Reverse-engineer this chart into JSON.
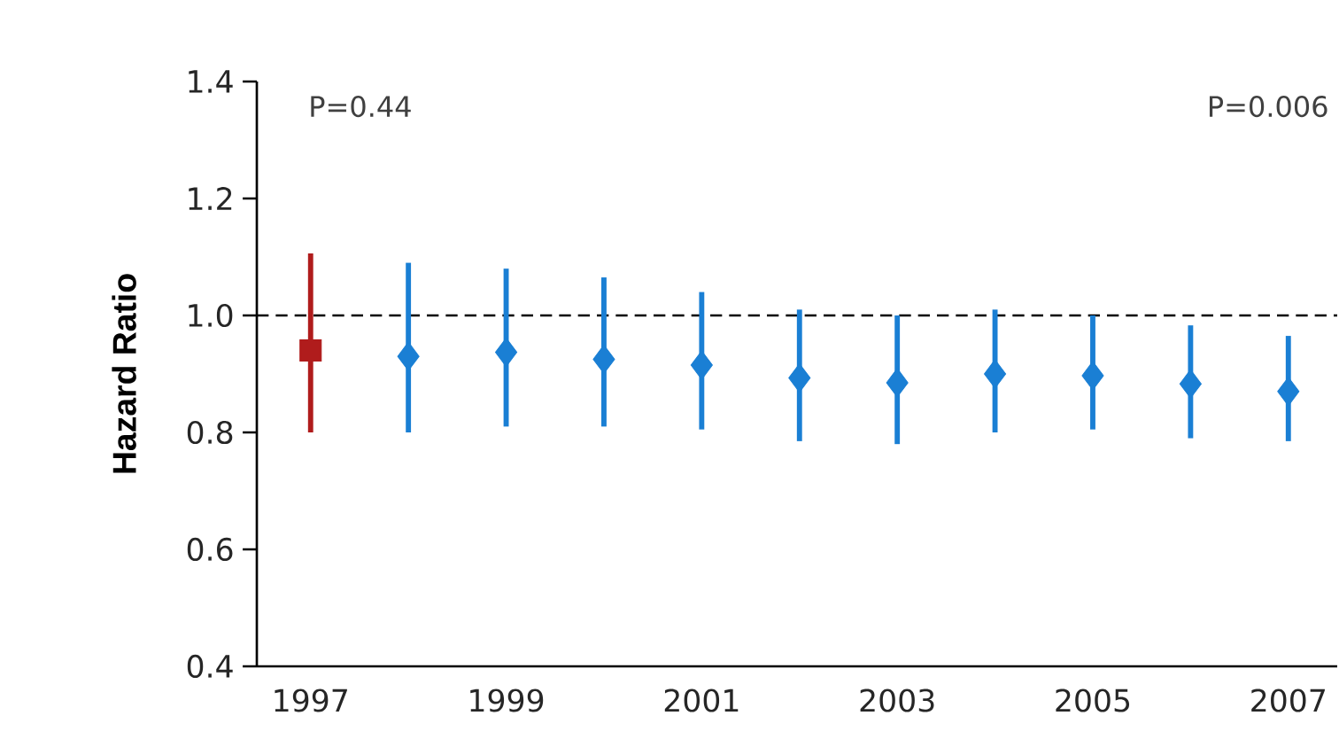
{
  "chart_data": {
    "type": "scatter",
    "ylabel": "Hazard Ratio",
    "annotations": [
      "P=0.44",
      "P=0.006"
    ],
    "series": [
      {
        "color": "#b01c1c",
        "marker": "square",
        "x": [
          1997
        ],
        "values": [
          0.94
        ],
        "errors": [
          [
            0.8,
            1.106
          ]
        ]
      },
      {
        "color": "#1a7fd4",
        "marker": "diamond",
        "x": [
          1998,
          1999,
          2000,
          2001,
          2002,
          2003,
          2004,
          2005,
          2006,
          2007
        ],
        "values": [
          0.93,
          0.937,
          0.925,
          0.915,
          0.893,
          0.885,
          0.9,
          0.897,
          0.883,
          0.87
        ],
        "errors": [
          [
            0.8,
            1.09
          ],
          [
            0.81,
            1.08
          ],
          [
            0.81,
            1.065
          ],
          [
            0.805,
            1.04
          ],
          [
            0.785,
            1.01
          ],
          [
            0.78,
            1.0
          ],
          [
            0.8,
            1.01
          ],
          [
            0.805,
            1.0
          ],
          [
            0.79,
            0.983
          ],
          [
            0.785,
            0.965
          ]
        ]
      }
    ],
    "xlim": [
      1996.45,
      2007.5
    ],
    "xticks": [
      1997,
      1999,
      2001,
      2003,
      2005,
      2007
    ],
    "ylim": [
      0.4,
      1.4
    ],
    "yticks": [
      0.4,
      0.6,
      0.8,
      {
        "value": 1,
        "label": "1.0"
      },
      1.2,
      1.4
    ],
    "ref_lines": [
      {
        "axis": "y",
        "value": 1.0,
        "line_style": "dashed",
        "color": "#000000"
      }
    ]
  }
}
